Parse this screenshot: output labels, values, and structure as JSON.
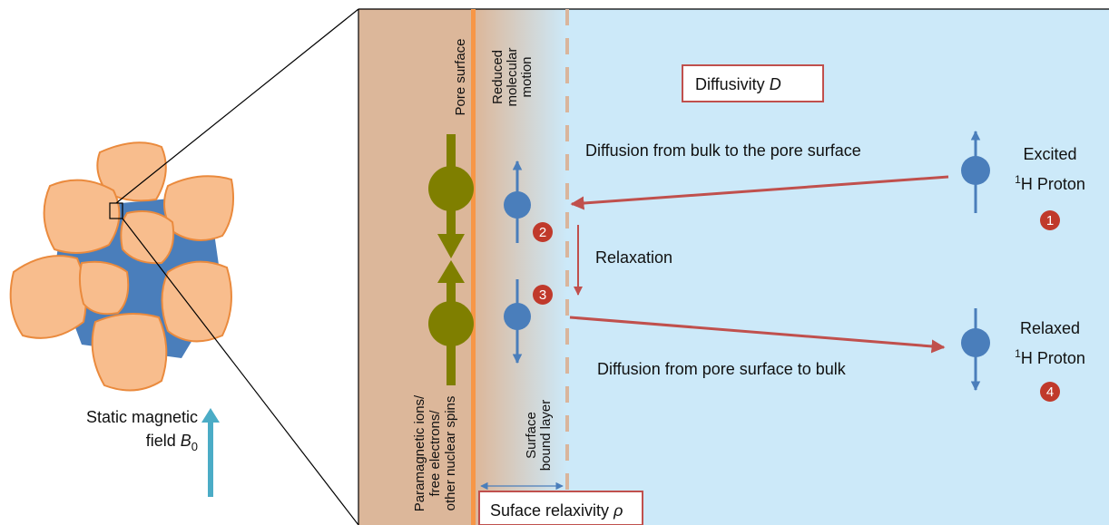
{
  "labels": {
    "pore_surface": "Pore surface",
    "reduced_motion": [
      "Reduced",
      "molecular",
      "motion"
    ],
    "diffusivity": {
      "text": "Diffusivity",
      "symbol": "D"
    },
    "diffusion_in": "Diffusion from bulk to the pore surface",
    "excited": {
      "line1": "Excited",
      "sup": "1",
      "line2": "H Proton"
    },
    "relaxation": "Relaxation",
    "relaxed": {
      "line1": "Relaxed",
      "sup": "1",
      "line2": "H Proton"
    },
    "diffusion_out": "Diffusion from pore surface to bulk",
    "surface_layer": [
      "Surface",
      "bound layer"
    ],
    "paramagnetic": [
      "Paramagnetic ions/",
      "free electrons/",
      "other nuclear spins"
    ],
    "relaxivity": {
      "text": "Suface relaxivity",
      "symbol": "ρ"
    },
    "field": {
      "line1": "Static magnetic",
      "line2": "field",
      "symbol": "B",
      "sub": "0"
    },
    "steps": [
      "1",
      "2",
      "3",
      "4"
    ]
  }
}
